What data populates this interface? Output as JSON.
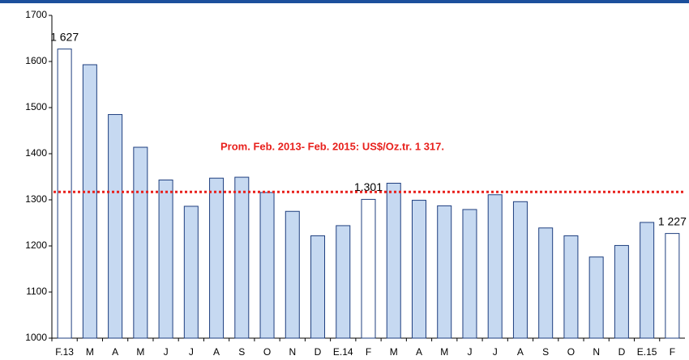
{
  "chart_data": {
    "type": "bar",
    "categories": [
      "F.13",
      "M",
      "A",
      "M",
      "J",
      "J",
      "A",
      "S",
      "O",
      "N",
      "D",
      "E.14",
      "F",
      "M",
      "A",
      "M",
      "J",
      "J",
      "A",
      "S",
      "O",
      "N",
      "D",
      "E.15",
      "F"
    ],
    "values": [
      1627,
      1593,
      1485,
      1414,
      1343,
      1286,
      1347,
      1349,
      1316,
      1275,
      1222,
      1244,
      1301,
      1336,
      1299,
      1287,
      1279,
      1311,
      1296,
      1239,
      1222,
      1176,
      1201,
      1251,
      1227
    ],
    "value_labels": [
      "1 627",
      null,
      null,
      null,
      null,
      null,
      null,
      null,
      null,
      null,
      null,
      null,
      "1.301",
      null,
      null,
      null,
      null,
      null,
      null,
      null,
      null,
      null,
      null,
      null,
      "1 227"
    ],
    "colors": [
      "#ffffff",
      "#c6d9f1",
      "#c6d9f1",
      "#c6d9f1",
      "#c6d9f1",
      "#c6d9f1",
      "#c6d9f1",
      "#c6d9f1",
      "#c6d9f1",
      "#c6d9f1",
      "#c6d9f1",
      "#c6d9f1",
      "#ffffff",
      "#c6d9f1",
      "#c6d9f1",
      "#c6d9f1",
      "#c6d9f1",
      "#c6d9f1",
      "#c6d9f1",
      "#c6d9f1",
      "#c6d9f1",
      "#c6d9f1",
      "#c6d9f1",
      "#c6d9f1",
      "#ffffff"
    ],
    "edge_color": "#1f3f7f",
    "ylim": [
      1000,
      1700
    ],
    "yticks": [
      1000,
      1100,
      1200,
      1300,
      1400,
      1500,
      1600,
      1700
    ],
    "grid": false,
    "reference_line": {
      "value": 1317,
      "label": "Prom. Feb. 2013- Feb. 2015: US$/Oz.tr. 1 317.",
      "color": "#e8201c"
    }
  }
}
